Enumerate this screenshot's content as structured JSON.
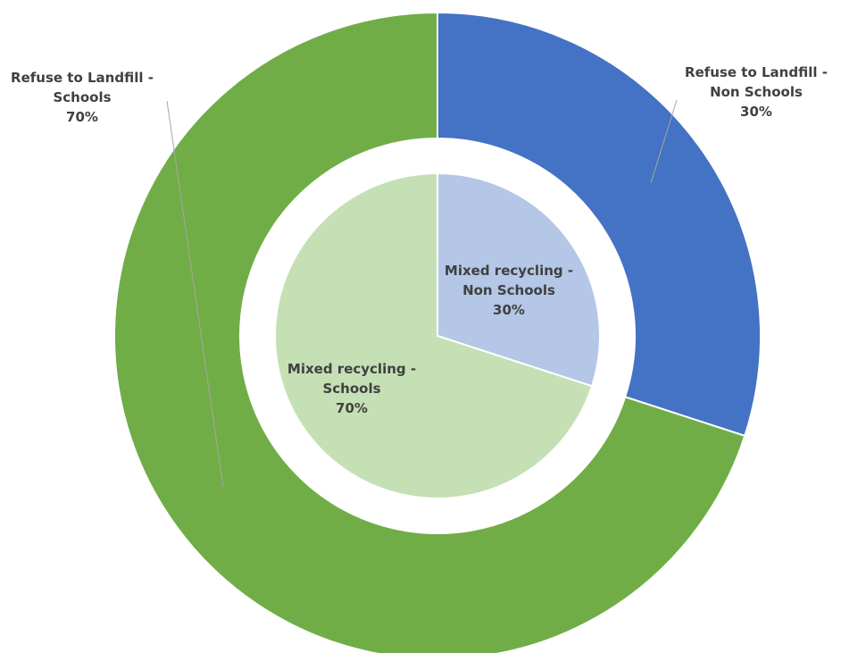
{
  "chart_data": {
    "type": "pie",
    "subtype": "nested-donut",
    "title": "",
    "rings": [
      {
        "ring": "outer",
        "slices": [
          {
            "label": "Refuse to Landfill - Non Schools",
            "label_lines": [
              "Refuse to Landfill -",
              "Non Schools"
            ],
            "value": 30,
            "percent_text": "30%",
            "color": "#4472C4"
          },
          {
            "label": "Refuse to Landfill - Schools",
            "label_lines": [
              "Refuse to Landfill -",
              "Schools"
            ],
            "value": 70,
            "percent_text": "70%",
            "color": "#70AD47"
          }
        ]
      },
      {
        "ring": "inner",
        "slices": [
          {
            "label": "Mixed recycling - Non Schools",
            "label_lines": [
              "Mixed recycling -",
              "Non Schools"
            ],
            "value": 30,
            "percent_text": "30%",
            "color": "#B4C7E7"
          },
          {
            "label": "Mixed recycling - Schools",
            "label_lines": [
              "Mixed recycling -",
              "Schools"
            ],
            "value": 70,
            "percent_text": "70%",
            "color": "#C5E0B4"
          }
        ]
      }
    ],
    "legend": "none",
    "background": "#FFFFFF",
    "label_color": "#404040",
    "leader_line_color": "#A6A6A6"
  }
}
